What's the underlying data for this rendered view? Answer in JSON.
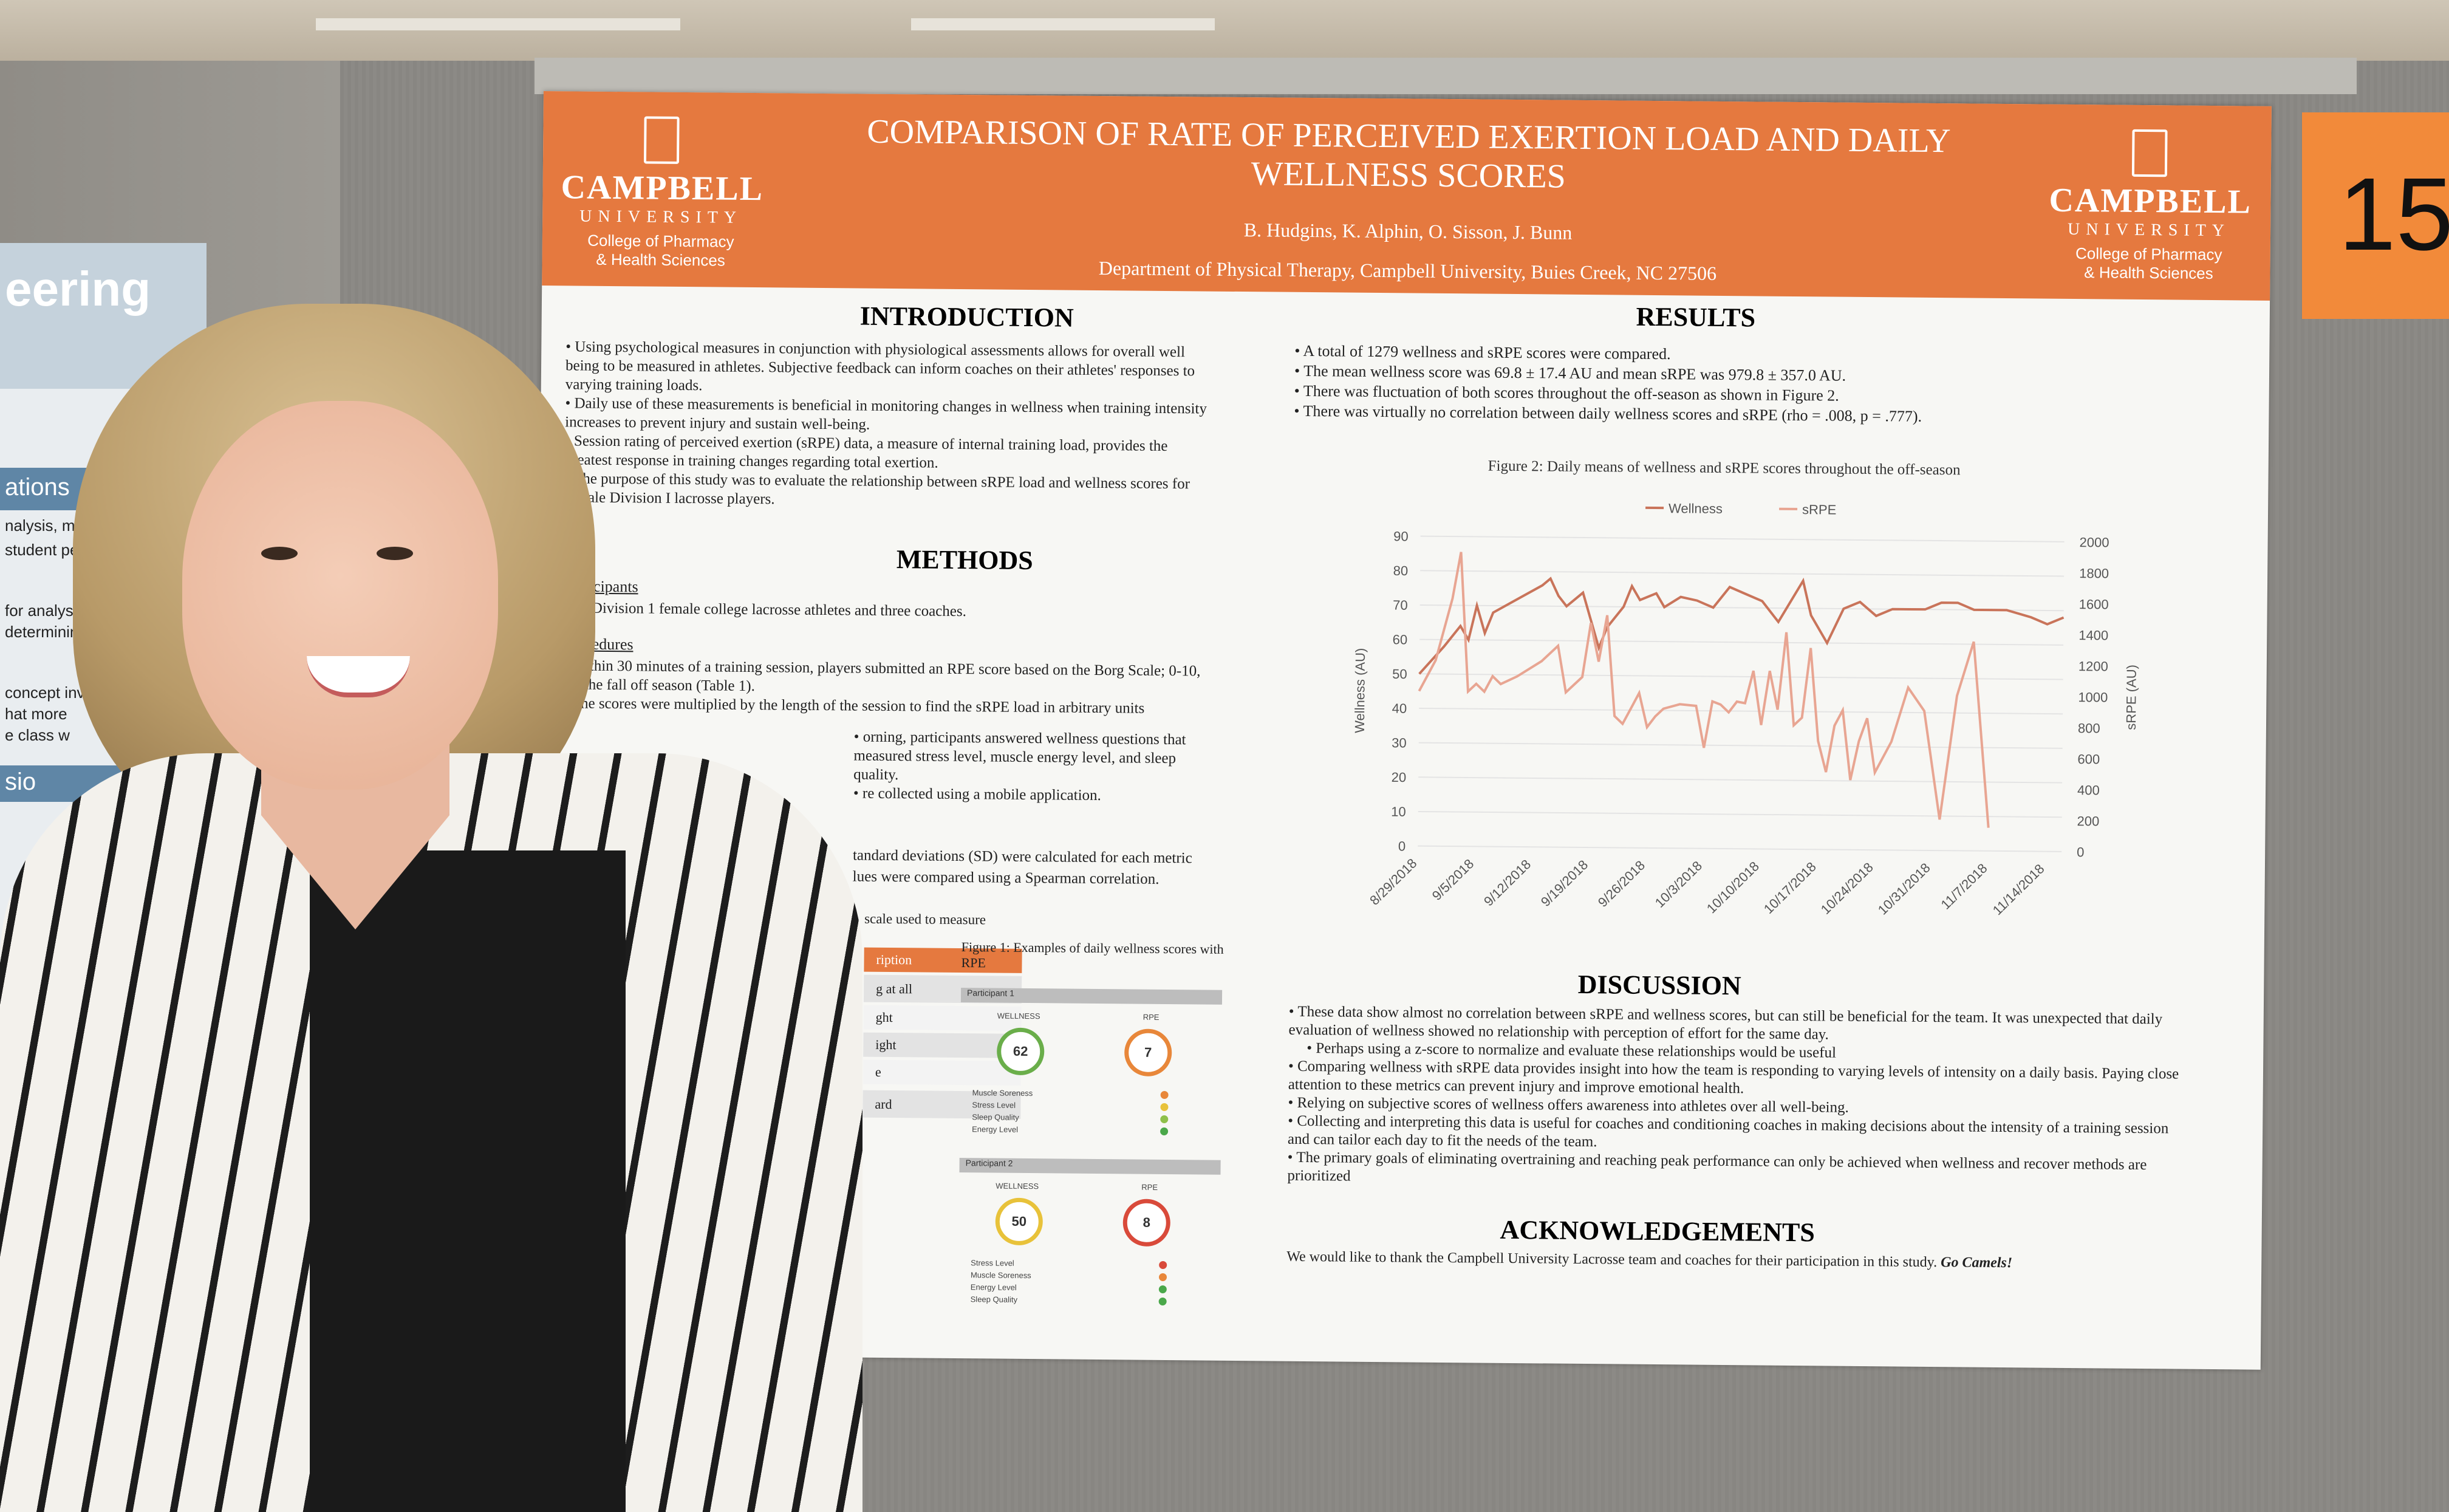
{
  "background": {
    "left_panel_lines": [
      "eering",
      "ations",
      "nalysis, more links",
      "student performanc",
      "for analysis and ve",
      "determining clas",
      "concept inv",
      "hat more",
      "e class w",
      "sio"
    ],
    "booth_number": "15"
  },
  "poster": {
    "title": "COMPARISON OF RATE OF PERCEIVED EXERTION LOAD AND DAILY WELLNESS SCORES",
    "authors": "B. Hudgins, K. Alphin, O. Sisson, J. Bunn",
    "department": "Department of Physical Therapy, Campbell University, Buies Creek, NC 27506",
    "logo": {
      "name": "CAMPBELL",
      "university": "UNIVERSITY",
      "college_line1": "College of Pharmacy",
      "college_line2": "& Health Sciences"
    },
    "introduction": {
      "heading": "INTRODUCTION",
      "bullets": [
        "Using psychological measures in conjunction with physiological assessments allows for overall well being to be measured in athletes. Subjective feedback can inform coaches on their athletes' responses to varying training loads.",
        "Daily use of these measurements is beneficial in monitoring changes in wellness when training intensity increases to prevent injury and sustain well-being.",
        "Session rating of perceived exertion (sRPE) data, a measure of internal training load, provides the greatest response in training changes regarding total exertion.",
        "The purpose of this study was to evaluate the relationship between sRPE load and wellness scores for female Division I lacrosse players."
      ]
    },
    "methods": {
      "heading": "METHODS",
      "participants_label": "Participants",
      "participants": "29 Division 1 female college lacrosse athletes and three coaches.",
      "procedures_label": "Procedures",
      "procedures": [
        "Within 30 minutes of a training session, players submitted an RPE score based on the Borg Scale; 0-10, for the fall off season (Table 1).",
        "The scores were multiplied by the length of the session to find the sRPE load in arbitrary units",
        "orning, participants answered wellness questions that measured stress level, muscle energy level, and sleep quality.",
        "re collected using a mobile application."
      ],
      "analysis": [
        "tandard deviations (SD) were calculated for each metric",
        "lues were compared using a Spearman correlation."
      ],
      "table_caption": "scale used to measure",
      "table_header": "ription",
      "table_rows": [
        "g at all",
        "ght",
        "ight",
        "e",
        "ard"
      ]
    },
    "figure1": {
      "caption": "Figure 1: Examples of daily wellness scores with RPE",
      "participant1": "Participant 1",
      "participant2": "Participant 2",
      "wellness_label": "WELLNESS",
      "rpe_label": "RPE",
      "p1_wellness": "62",
      "p1_rpe": "7",
      "p2_wellness": "50",
      "p2_rpe": "8",
      "p1_items": [
        "Muscle Soreness",
        "Stress Level",
        "Sleep Quality",
        "Energy Level"
      ],
      "p2_items": [
        "Stress Level",
        "Muscle Soreness",
        "Energy Level",
        "Sleep Quality"
      ],
      "dot_colors_p1": [
        "#e8873a",
        "#e8c23a",
        "#8ec04a",
        "#4aa84a"
      ],
      "dot_colors_p2": [
        "#d94a3a",
        "#e8873a",
        "#4aa84a",
        "#4aa84a"
      ]
    },
    "results": {
      "heading": "RESULTS",
      "bullets": [
        "A total of 1279 wellness and sRPE scores were compared.",
        "The mean wellness score was 69.8 ± 17.4 AU and mean sRPE was 979.8 ± 357.0 AU.",
        "There was fluctuation of both scores throughout the off-season as shown in Figure 2.",
        "There was virtually no correlation between daily wellness scores and sRPE (rho = .008, p = .777)."
      ]
    },
    "discussion": {
      "heading": "DISCUSSION",
      "bullets": [
        "These data show almost no correlation between sRPE and wellness scores, but can still be beneficial for the team. It was unexpected that daily evaluation of wellness showed no relationship with perception of effort for the same day.",
        "Perhaps using a z-score to normalize and evaluate these relationships would be useful",
        "Comparing wellness with sRPE data provides insight into how the team is responding to varying levels of intensity on a daily basis. Paying close attention to these metrics can prevent injury and improve emotional health.",
        "Relying on subjective scores of wellness offers awareness into athletes over all well-being.",
        "Collecting and interpreting this data is useful for coaches and conditioning coaches in making decisions about the intensity of a training session and can tailor each day to fit the needs of the team.",
        "The primary goals of eliminating overtraining and reaching peak performance can only be achieved when wellness and recover methods are prioritized"
      ]
    },
    "acknowledgements": {
      "heading": "ACKNOWLEDGEMENTS",
      "text": "We would like to thank the Campbell University Lacrosse team and coaches for their participation in this study.",
      "emphasis": "Go Camels!"
    }
  },
  "chart_data": {
    "type": "line",
    "title": "Figure 2: Daily means of wellness and sRPE scores throughout the off-season",
    "ylabel": "Wellness (AU)",
    "y2label": "sRPE (AU)",
    "ylim": [
      0,
      90
    ],
    "y2lim": [
      0,
      2000
    ],
    "yticks": [
      "0",
      "10",
      "20",
      "30",
      "40",
      "50",
      "60",
      "70",
      "80",
      "90"
    ],
    "y2ticks": [
      "0",
      "200",
      "400",
      "600",
      "800",
      "1000",
      "1200",
      "1400",
      "1600",
      "1800",
      "2000"
    ],
    "xticks": [
      "8/29/2018",
      "9/5/2018",
      "9/12/2018",
      "9/19/2018",
      "9/26/2018",
      "10/3/2018",
      "10/10/2018",
      "10/17/2018",
      "10/24/2018",
      "10/31/2018",
      "11/7/2018",
      "11/14/2018"
    ],
    "legend": [
      "Wellness",
      "sRPE"
    ],
    "legend_position": "top",
    "colors": {
      "wellness": "#c9745a",
      "srpe": "#e8a592"
    },
    "x_days_start": "8/29/2018",
    "wellness": [
      [
        0,
        50
      ],
      [
        3,
        58
      ],
      [
        5,
        64
      ],
      [
        6,
        60
      ],
      [
        7,
        70
      ],
      [
        8,
        62
      ],
      [
        9,
        68
      ],
      [
        12,
        72
      ],
      [
        15,
        76
      ],
      [
        16,
        78
      ],
      [
        17,
        73
      ],
      [
        18,
        70
      ],
      [
        20,
        74
      ],
      [
        21,
        66
      ],
      [
        22,
        58
      ],
      [
        23,
        64
      ],
      [
        25,
        70
      ],
      [
        26,
        76
      ],
      [
        27,
        72
      ],
      [
        29,
        74
      ],
      [
        30,
        70
      ],
      [
        32,
        73
      ],
      [
        34,
        72
      ],
      [
        35,
        71
      ],
      [
        36,
        70
      ],
      [
        38,
        76
      ],
      [
        40,
        74
      ],
      [
        42,
        72
      ],
      [
        44,
        66
      ],
      [
        45,
        70
      ],
      [
        47,
        78
      ],
      [
        48,
        68
      ],
      [
        50,
        60
      ],
      [
        52,
        70
      ],
      [
        54,
        72
      ],
      [
        56,
        68
      ],
      [
        58,
        70
      ],
      [
        60,
        70
      ],
      [
        62,
        70
      ],
      [
        64,
        72
      ],
      [
        66,
        72
      ],
      [
        68,
        70
      ],
      [
        70,
        70
      ],
      [
        72,
        70
      ],
      [
        75,
        68
      ],
      [
        77,
        66
      ],
      [
        79,
        68
      ]
    ],
    "srpe": [
      [
        0,
        1000
      ],
      [
        2,
        1200
      ],
      [
        4,
        1600
      ],
      [
        5,
        1900
      ],
      [
        6,
        1000
      ],
      [
        7,
        1050
      ],
      [
        8,
        1000
      ],
      [
        9,
        1100
      ],
      [
        10,
        1050
      ],
      [
        12,
        1100
      ],
      [
        15,
        1200
      ],
      [
        17,
        1300
      ],
      [
        18,
        1000
      ],
      [
        19,
        1050
      ],
      [
        20,
        1100
      ],
      [
        21,
        1450
      ],
      [
        22,
        1200
      ],
      [
        23,
        1500
      ],
      [
        24,
        850
      ],
      [
        25,
        800
      ],
      [
        26,
        900
      ],
      [
        27,
        1000
      ],
      [
        28,
        780
      ],
      [
        29,
        850
      ],
      [
        30,
        900
      ],
      [
        32,
        930
      ],
      [
        34,
        920
      ],
      [
        35,
        650
      ],
      [
        36,
        950
      ],
      [
        37,
        930
      ],
      [
        38,
        880
      ],
      [
        39,
        950
      ],
      [
        40,
        940
      ],
      [
        41,
        1150
      ],
      [
        42,
        800
      ],
      [
        43,
        1150
      ],
      [
        44,
        900
      ],
      [
        45,
        1400
      ],
      [
        46,
        800
      ],
      [
        47,
        850
      ],
      [
        48,
        1300
      ],
      [
        49,
        700
      ],
      [
        50,
        500
      ],
      [
        51,
        800
      ],
      [
        52,
        900
      ],
      [
        53,
        450
      ],
      [
        54,
        700
      ],
      [
        55,
        850
      ],
      [
        56,
        500
      ],
      [
        58,
        700
      ],
      [
        60,
        1050
      ],
      [
        62,
        900
      ],
      [
        64,
        200
      ],
      [
        66,
        1000
      ],
      [
        68,
        1350
      ],
      [
        70,
        150
      ]
    ]
  }
}
